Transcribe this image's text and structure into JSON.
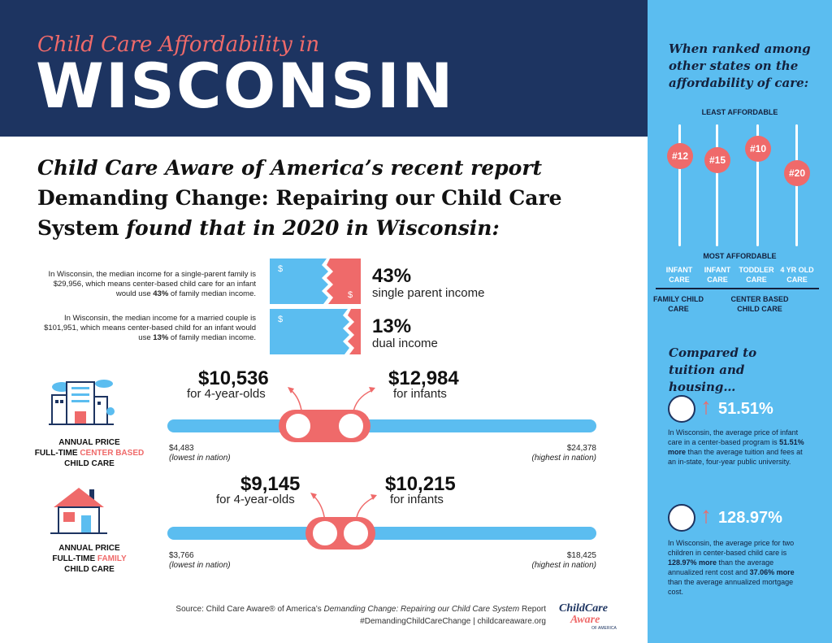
{
  "header": {
    "subtitle": "Child Care Affordability in",
    "state": "WISCONSIN"
  },
  "intro": {
    "line1": "Child Care Aware of America’s recent report",
    "line2": "Demanding Change: Repairing our Child Care",
    "line3_bold": "System",
    "line3_italic": " found that in 2020 in Wisconsin:"
  },
  "income": {
    "single_text_1": "In Wisconsin, the median income for a single-parent family is $29,956, which means center-based child care for an infant would use ",
    "single_text_bold": "43%",
    "single_text_2": " of family median income.",
    "single_pct": "43%",
    "single_label": "single parent income",
    "dual_text_1": "In Wisconsin, the median income for a married couple is $101,951, which means center-based child for an infant would use ",
    "dual_text_bold": "13%",
    "dual_text_2": " of family median income.",
    "dual_pct": "13%",
    "dual_label": "dual income",
    "single_share": 0.43,
    "dual_share": 0.13
  },
  "center": {
    "price_4yr": "$10,536",
    "label_4yr": "for 4-year-olds",
    "price_infant": "$12,984",
    "label_infant": "for infants",
    "low": "$4,483",
    "low_note": "(lowest in nation)",
    "high": "$24,378",
    "high_note": "(highest in nation)",
    "caption_1": "ANNUAL PRICE",
    "caption_2a": "FULL-TIME ",
    "caption_2b": "CENTER BASED",
    "caption_3": "CHILD CARE",
    "min": 4483,
    "max": 24378,
    "v4": 10536,
    "vi": 12984
  },
  "family": {
    "price_4yr": "$9,145",
    "label_4yr": "for 4-year-olds",
    "price_infant": "$10,215",
    "label_infant": "for infants",
    "low": "$3,766",
    "low_note": "(lowest in nation)",
    "high": "$18,425",
    "high_note": "(highest in nation)",
    "caption_1": "ANNUAL PRICE",
    "caption_2a": "FULL-TIME ",
    "caption_2b": "FAMILY",
    "caption_3": "CHILD CARE",
    "min": 3766,
    "max": 18425,
    "v4": 9145,
    "vi": 10215
  },
  "source": {
    "prefix": "Source: Child Care Aware® of America’s ",
    "title": "Demanding Change: Repairing our Child Care System",
    "suffix": " Report",
    "line2": "#DemandingChildCareChange | childcareaware.org"
  },
  "logo": {
    "l1": "ChildCare",
    "l2": "Aware",
    "l3": "OF AMERICA"
  },
  "panel": {
    "rank_heading": "When ranked among other states on the affordability of care:",
    "least": "LEAST AFFORDABLE",
    "most": "MOST AFFORDABLE",
    "ranks": [
      {
        "rank": "#12",
        "label": "INFANT CARE"
      },
      {
        "rank": "#15",
        "label": "INFANT CARE"
      },
      {
        "rank": "#10",
        "label": "TODDLER CARE"
      },
      {
        "rank": "#20",
        "label": "4 YR OLD CARE"
      }
    ],
    "group_family": "FAMILY CHILD CARE",
    "group_center": "CENTER BASED CHILD CARE",
    "compare_heading": "Compared to tuition and housing…",
    "stat1_value": "51.51%",
    "stat1_text_1": "In Wisconsin, the average price of infant care in a center-based program is ",
    "stat1_text_bold": "51.51% more",
    "stat1_text_2": " than the average tuition and fees at an in-state, four-year public university.",
    "stat2_value": "128.97%",
    "stat2_text_1": "In Wisconsin, the average price for two children in center-based child care is ",
    "stat2_text_bold": "128.97% more",
    "stat2_text_2": " than the average annualized rent cost and ",
    "stat2_text_bold2": "37.06% more",
    "stat2_text_3": " than the average annualized mortgage cost.",
    "colors": {
      "navy": "#1d3461",
      "coral": "#ef6a6a",
      "sky": "#5bbdf0"
    }
  }
}
